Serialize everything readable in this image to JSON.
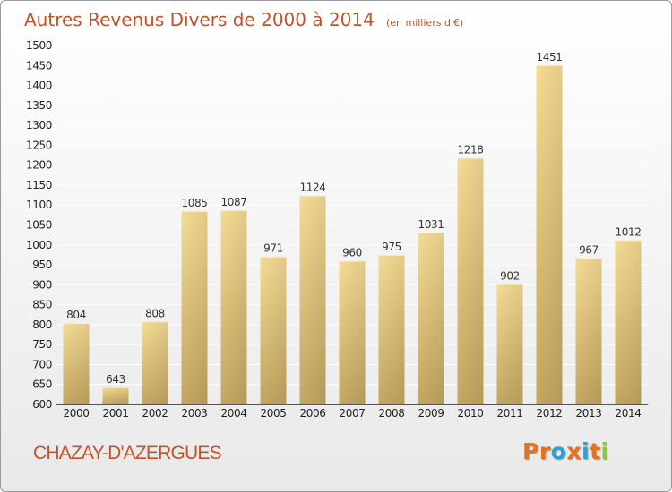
{
  "chart_data": {
    "type": "bar",
    "title": "Autres Revenus Divers de 2000 à 2014",
    "subtitle": "(en milliers d'€)",
    "categories": [
      "2000",
      "2001",
      "2002",
      "2003",
      "2004",
      "2005",
      "2006",
      "2007",
      "2008",
      "2009",
      "2010",
      "2011",
      "2012",
      "2013",
      "2014"
    ],
    "values": [
      804,
      643,
      808,
      1085,
      1087,
      971,
      1124,
      960,
      975,
      1031,
      1218,
      902,
      1451,
      967,
      1012
    ],
    "ylim": [
      600,
      1500
    ],
    "ytick_step": 50,
    "grid": true,
    "bar_color": "#e8cf84",
    "bar_color_dark": "#c9a95e"
  },
  "footer": {
    "commune": "CHAZAY-D'AZERGUES",
    "brand": "Proxiti",
    "brand_colors": [
      "#e8711c",
      "#e8711c",
      "#2ba1d9",
      "#e8711c",
      "#2ba1d9",
      "#e8711c",
      "#8cc63f"
    ]
  }
}
